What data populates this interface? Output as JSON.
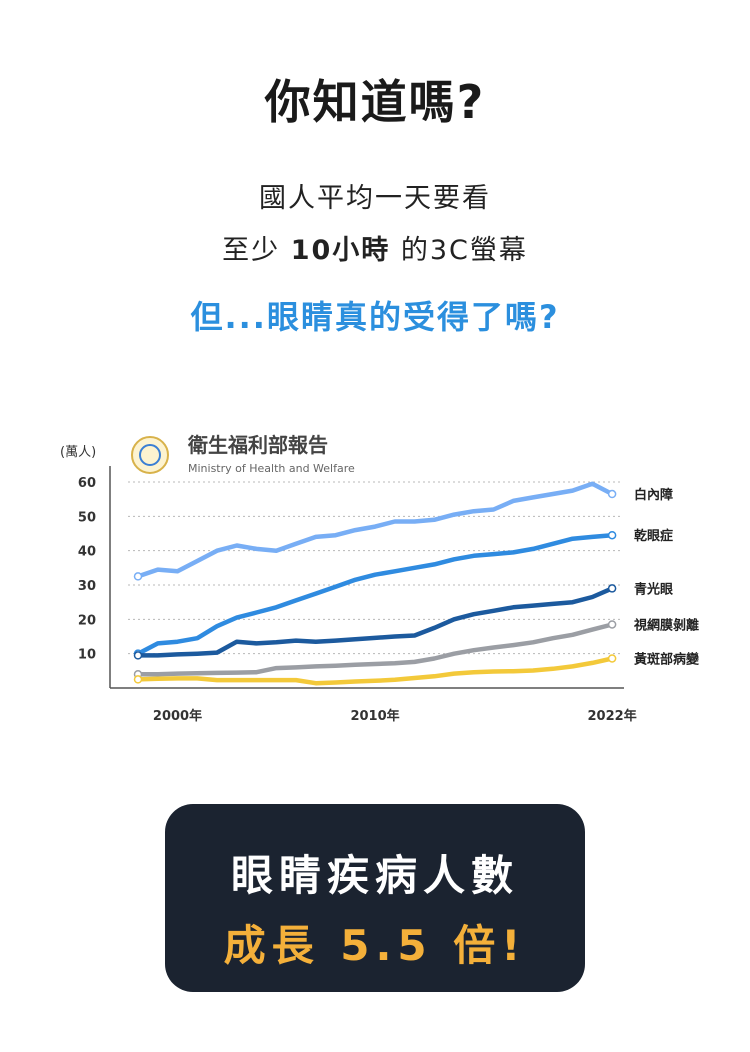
{
  "headline": "你知道嗎?",
  "intro": {
    "line1": "國人平均一天要看",
    "line2_pre": "至少",
    "line2_highlight": "10小時",
    "line2_post": "的3C螢幕"
  },
  "question": "但...眼睛真的受得了嗎?",
  "source": {
    "name": "衛生福利部報告",
    "english": "Ministry of Health and Welfare"
  },
  "chart_data": {
    "type": "line",
    "unit_label": "(萬人)",
    "ylim": [
      0,
      60
    ],
    "y_ticks": [
      10,
      20,
      30,
      40,
      50,
      60
    ],
    "y_tick_labels": [
      "10",
      "20",
      "30",
      "40",
      "50",
      "60"
    ],
    "x_tick_labels": [
      {
        "x": 2000,
        "label": "2000年"
      },
      {
        "x": 2010,
        "label": "2010年"
      },
      {
        "x": 2022,
        "label": "2022年"
      }
    ],
    "xlim": [
      1998,
      2022.5
    ],
    "grid": true,
    "x": [
      1998,
      1999,
      2000,
      2001,
      2002,
      2003,
      2004,
      2005,
      2006,
      2007,
      2008,
      2009,
      2010,
      2011,
      2012,
      2013,
      2014,
      2015,
      2016,
      2017,
      2018,
      2019,
      2020,
      2021,
      2022
    ],
    "series": [
      {
        "name": "白內障",
        "color": "#78aef5",
        "values": [
          32.5,
          34.5,
          34,
          37,
          40,
          41.5,
          40.5,
          40,
          42,
          44,
          44.5,
          46,
          47,
          48.5,
          48.5,
          49,
          50.5,
          51.5,
          52,
          54.5,
          55.5,
          56.5,
          57.5,
          59.5,
          56.5
        ]
      },
      {
        "name": "乾眼症",
        "color": "#2f8be0",
        "values": [
          10,
          13,
          13.5,
          14.5,
          18,
          20.5,
          22,
          23.5,
          25.5,
          27.5,
          29.5,
          31.5,
          33,
          34,
          35,
          36,
          37.5,
          38.5,
          39,
          39.5,
          40.5,
          42,
          43.5,
          44,
          44.5
        ]
      },
      {
        "name": "青光眼",
        "color": "#1c5a9e",
        "values": [
          9.5,
          9.5,
          9.8,
          10,
          10.3,
          13.5,
          13,
          13.3,
          13.8,
          13.5,
          13.8,
          14.2,
          14.6,
          15,
          15.3,
          17.5,
          20,
          21.5,
          22.5,
          23.5,
          24,
          24.5,
          25,
          26.5,
          29
        ]
      },
      {
        "name": "視網膜剝離",
        "color": "#9b9ea4",
        "values": [
          4,
          4,
          4.2,
          4.3,
          4.4,
          4.5,
          4.6,
          5.8,
          6,
          6.3,
          6.5,
          6.8,
          7,
          7.2,
          7.6,
          8.6,
          10,
          11,
          11.8,
          12.5,
          13.3,
          14.5,
          15.5,
          17,
          18.5
        ]
      },
      {
        "name": "黃斑部病變",
        "color": "#f3c93a",
        "values": [
          2.5,
          2.7,
          2.8,
          2.8,
          2.3,
          2.3,
          2.3,
          2.3,
          2.3,
          1.4,
          1.6,
          1.9,
          2.1,
          2.4,
          2.9,
          3.4,
          4.2,
          4.6,
          4.8,
          4.9,
          5.1,
          5.6,
          6.3,
          7.3,
          8.6
        ]
      }
    ]
  },
  "callout": {
    "line1": "眼睛疾病人數",
    "line2": "成長 5.5 倍!"
  }
}
